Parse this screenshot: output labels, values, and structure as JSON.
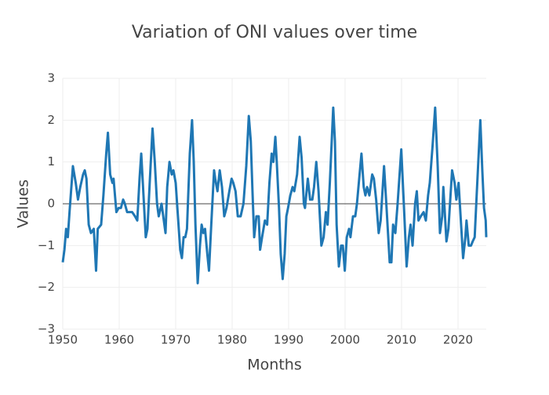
{
  "chart_data": {
    "type": "line",
    "title": "Variation of ONI values over time",
    "x_label": "Months",
    "y_label": "Values",
    "xlim": [
      1950,
      2025
    ],
    "xticks": [
      1950,
      1960,
      1970,
      1980,
      1990,
      2000,
      2010,
      2020
    ],
    "ylim": [
      -3,
      3
    ],
    "yticks": [
      {
        "value": -3,
        "label": "−3"
      },
      {
        "value": -2,
        "label": "−2"
      },
      {
        "value": -1,
        "label": "−1"
      },
      0,
      1,
      2,
      3
    ],
    "grid": true,
    "zeroline": true,
    "x": [
      1950.0,
      1950.3,
      1950.6,
      1950.9,
      1951.2,
      1951.8,
      1952.3,
      1952.7,
      1953.1,
      1953.6,
      1953.9,
      1954.2,
      1954.6,
      1955.0,
      1955.5,
      1955.9,
      1956.2,
      1956.8,
      1957.2,
      1957.7,
      1958.0,
      1958.4,
      1958.8,
      1959.0,
      1959.5,
      1959.9,
      1960.3,
      1960.7,
      1961.0,
      1961.4,
      1961.9,
      1962.3,
      1962.8,
      1963.2,
      1963.6,
      1963.9,
      1964.3,
      1964.7,
      1965.0,
      1965.4,
      1965.9,
      1966.3,
      1966.7,
      1967.0,
      1967.5,
      1967.9,
      1968.2,
      1968.5,
      1968.9,
      1969.3,
      1969.6,
      1970.0,
      1970.4,
      1970.8,
      1971.1,
      1971.4,
      1971.7,
      1972.0,
      1972.5,
      1972.9,
      1973.2,
      1973.5,
      1973.9,
      1974.3,
      1974.6,
      1974.9,
      1975.2,
      1975.6,
      1975.9,
      1976.3,
      1976.8,
      1977.0,
      1977.4,
      1977.8,
      1978.2,
      1978.6,
      1979.0,
      1979.5,
      1979.9,
      1980.2,
      1980.6,
      1981.0,
      1981.5,
      1982.0,
      1982.5,
      1982.95,
      1983.3,
      1983.6,
      1983.9,
      1984.3,
      1984.7,
      1984.95,
      1985.3,
      1985.8,
      1986.2,
      1986.6,
      1987.0,
      1987.3,
      1987.65,
      1987.9,
      1988.3,
      1988.6,
      1988.95,
      1989.3,
      1989.6,
      1989.9,
      1990.3,
      1990.7,
      1991.0,
      1991.5,
      1991.95,
      1992.3,
      1992.7,
      1992.9,
      1993.4,
      1993.8,
      1994.2,
      1994.5,
      1994.9,
      1995.3,
      1995.8,
      1996.2,
      1996.6,
      1996.9,
      1997.3,
      1997.9,
      1998.2,
      1998.5,
      1998.9,
      1999.3,
      1999.6,
      1999.95,
      2000.3,
      2000.7,
      2000.95,
      2001.4,
      2001.8,
      2002.1,
      2002.9,
      2003.3,
      2003.6,
      2003.9,
      2004.3,
      2004.8,
      2005.1,
      2005.5,
      2005.95,
      2006.3,
      2006.9,
      2007.3,
      2007.9,
      2008.2,
      2008.5,
      2008.9,
      2009.3,
      2009.95,
      2010.4,
      2010.9,
      2011.3,
      2011.6,
      2011.95,
      2012.4,
      2012.7,
      2013.0,
      2013.4,
      2013.9,
      2014.3,
      2014.7,
      2015.0,
      2015.5,
      2015.95,
      2016.4,
      2016.8,
      2017.2,
      2017.4,
      2017.95,
      2018.3,
      2018.95,
      2019.4,
      2019.7,
      2020.1,
      2020.5,
      2020.9,
      2021.3,
      2021.5,
      2021.9,
      2022.3,
      2022.6,
      2022.95,
      2023.3,
      2023.95,
      2024.3,
      2024.6,
      2024.9,
      2025.0
    ],
    "series": [
      {
        "color": "#1f77b4",
        "values": [
          -1.4,
          -1.1,
          -0.6,
          -0.8,
          -0.2,
          0.9,
          0.5,
          0.1,
          0.4,
          0.7,
          0.8,
          0.6,
          -0.5,
          -0.7,
          -0.6,
          -1.6,
          -0.6,
          -0.5,
          0.2,
          1.2,
          1.7,
          0.7,
          0.5,
          0.6,
          -0.2,
          -0.1,
          -0.1,
          0.1,
          0.0,
          -0.2,
          -0.2,
          -0.2,
          -0.3,
          -0.4,
          0.6,
          1.2,
          0.2,
          -0.8,
          -0.6,
          0.5,
          1.8,
          1.0,
          0.0,
          -0.3,
          0.0,
          -0.4,
          -0.7,
          0.4,
          1.0,
          0.7,
          0.8,
          0.5,
          -0.3,
          -1.1,
          -1.3,
          -0.8,
          -0.8,
          -0.6,
          1.2,
          2.0,
          1.0,
          -0.5,
          -1.9,
          -1.0,
          -0.5,
          -0.7,
          -0.6,
          -1.2,
          -1.6,
          -0.5,
          0.8,
          0.6,
          0.3,
          0.8,
          0.4,
          -0.3,
          -0.1,
          0.3,
          0.6,
          0.5,
          0.3,
          -0.3,
          -0.3,
          0.0,
          0.9,
          2.1,
          1.5,
          0.3,
          -0.8,
          -0.3,
          -0.3,
          -1.1,
          -0.8,
          -0.4,
          -0.5,
          0.5,
          1.2,
          1.0,
          1.6,
          1.0,
          -0.1,
          -1.2,
          -1.8,
          -1.2,
          -0.3,
          -0.1,
          0.2,
          0.4,
          0.3,
          0.7,
          1.6,
          1.1,
          0.0,
          -0.1,
          0.6,
          0.1,
          0.1,
          0.4,
          1.0,
          0.3,
          -1.0,
          -0.8,
          -0.2,
          -0.5,
          0.5,
          2.3,
          1.5,
          -0.5,
          -1.5,
          -1.0,
          -1.0,
          -1.6,
          -0.8,
          -0.6,
          -0.8,
          -0.3,
          -0.3,
          0.0,
          1.2,
          0.4,
          0.2,
          0.4,
          0.2,
          0.7,
          0.6,
          0.1,
          -0.7,
          -0.4,
          0.9,
          0.0,
          -1.4,
          -1.4,
          -0.5,
          -0.7,
          0.0,
          1.3,
          0.0,
          -1.5,
          -0.8,
          -0.5,
          -1.0,
          0.0,
          0.3,
          -0.4,
          -0.3,
          -0.2,
          -0.4,
          0.2,
          0.5,
          1.4,
          2.3,
          0.9,
          -0.7,
          -0.3,
          0.4,
          -0.9,
          -0.6,
          0.8,
          0.5,
          0.1,
          0.5,
          -0.4,
          -1.3,
          -0.8,
          -0.4,
          -1.0,
          -1.0,
          -0.9,
          -0.8,
          0.2,
          2.0,
          0.8,
          -0.1,
          -0.4,
          -0.8
        ]
      }
    ]
  }
}
